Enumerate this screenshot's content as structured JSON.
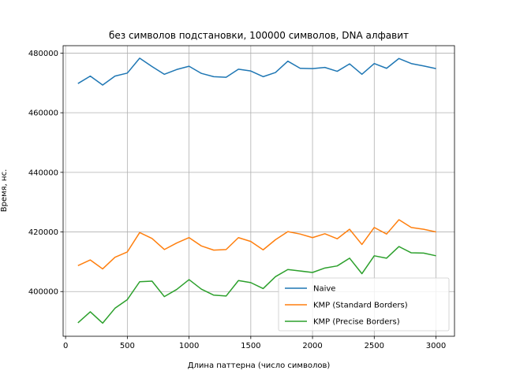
{
  "chart_data": {
    "type": "line",
    "title": "без символов подстановки, 100000 символов, DNA алфавит",
    "xlabel": "Длина паттерна (число символов)",
    "ylabel": "Время, нс.",
    "xlim": [
      -20,
      3150
    ],
    "ylim": [
      385000,
      482500
    ],
    "xticks": [
      0,
      500,
      1000,
      1500,
      2000,
      2500,
      3000
    ],
    "yticks": [
      400000,
      420000,
      440000,
      460000,
      480000
    ],
    "grid": true,
    "legend_position": "lower-right",
    "x": [
      100,
      200,
      300,
      400,
      500,
      600,
      700,
      800,
      900,
      1000,
      1100,
      1200,
      1300,
      1400,
      1500,
      1600,
      1700,
      1800,
      1900,
      2000,
      2100,
      2200,
      2300,
      2400,
      2500,
      2600,
      2700,
      2800,
      2900,
      3000
    ],
    "series": [
      {
        "name": "Naive",
        "color": "#1f77b4",
        "values": [
          469800,
          472300,
          469300,
          472300,
          473300,
          478300,
          475500,
          472900,
          474500,
          475600,
          473200,
          472100,
          471900,
          474600,
          474000,
          472100,
          473500,
          477300,
          474900,
          474800,
          475200,
          473900,
          476400,
          472900,
          476500,
          474900,
          478200,
          476500,
          475700,
          474800
        ]
      },
      {
        "name": "KMP (Standard Borders)",
        "color": "#ff7f0e",
        "values": [
          408700,
          410600,
          407600,
          411500,
          413300,
          419800,
          417800,
          414100,
          416300,
          418100,
          415300,
          413900,
          414100,
          418100,
          416800,
          414000,
          417400,
          420100,
          419300,
          418100,
          419400,
          417700,
          420900,
          415800,
          421500,
          419300,
          424100,
          421500,
          420900,
          420000
        ]
      },
      {
        "name": "KMP (Precise Borders)",
        "color": "#2ca02c",
        "values": [
          389500,
          393200,
          389400,
          394400,
          397300,
          403300,
          403500,
          398300,
          400700,
          404000,
          400800,
          398800,
          398500,
          403700,
          403000,
          401000,
          405000,
          407400,
          406900,
          406400,
          407900,
          408600,
          411200,
          406000,
          412000,
          411200,
          415100,
          413000,
          412900,
          412000
        ]
      }
    ]
  }
}
